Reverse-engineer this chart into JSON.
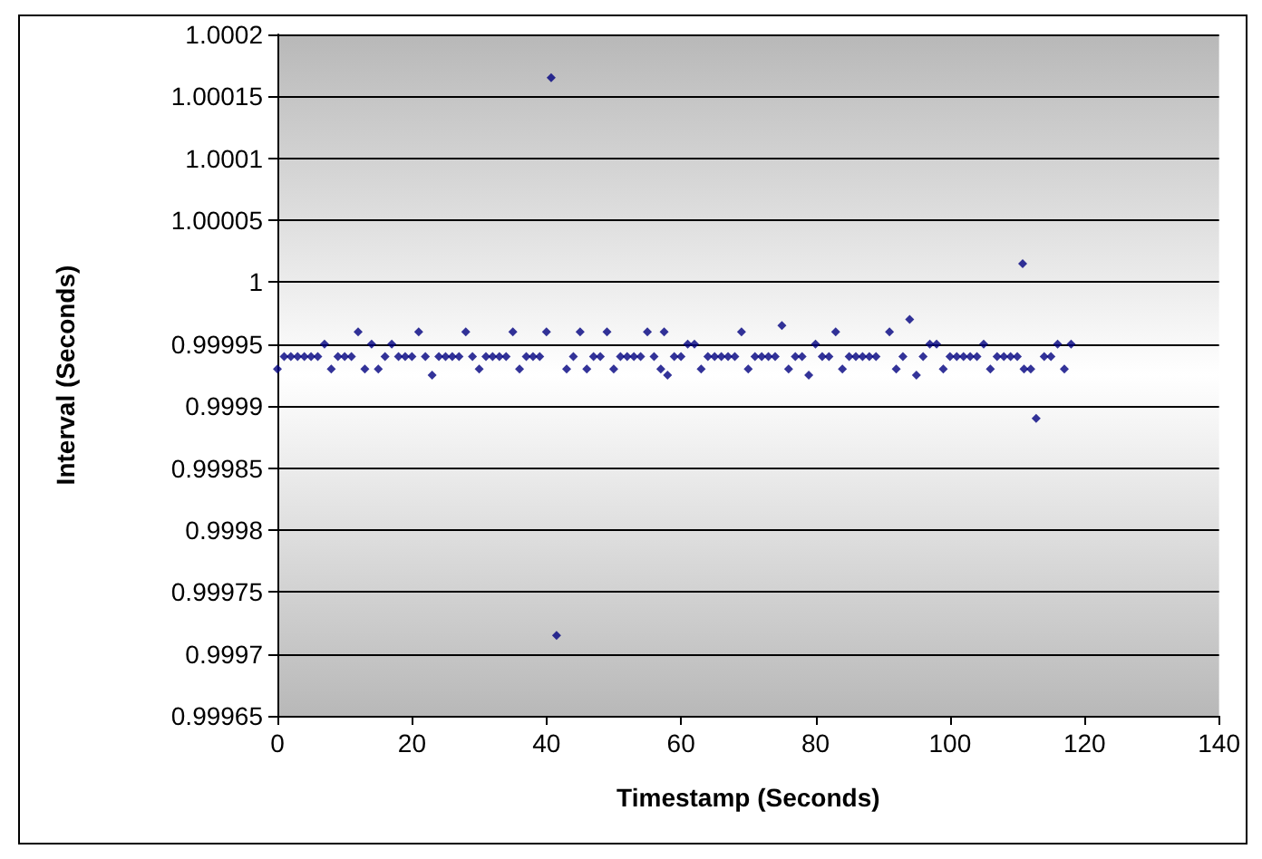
{
  "chart_data": {
    "type": "scatter",
    "xlabel": "Timestamp (Seconds)",
    "ylabel": "Interval (Seconds)",
    "xlim": [
      0,
      140
    ],
    "xticks": [
      0,
      20,
      40,
      60,
      80,
      100,
      120,
      140
    ],
    "ylim": [
      0.99965,
      1.0002
    ],
    "yticks": [
      0.99965,
      0.9997,
      0.99975,
      0.9998,
      0.99985,
      0.9999,
      0.99995,
      1,
      1.00005,
      1.0001,
      1.00015,
      1.0002
    ],
    "grid": "y",
    "marker": "diamond",
    "series": [
      {
        "color": "#000080",
        "x": [
          0,
          1,
          2,
          3,
          4,
          5,
          6,
          7,
          8,
          9,
          10,
          11,
          12,
          13,
          14,
          15,
          16,
          17,
          18,
          19,
          20,
          21,
          22,
          23,
          24,
          25,
          26,
          27,
          28,
          29,
          30,
          31,
          32,
          33,
          34,
          35,
          36,
          37,
          38,
          39,
          40,
          40.7,
          41.5,
          43,
          44,
          45,
          46,
          47,
          48,
          49,
          50,
          51,
          52,
          53,
          54,
          55,
          56,
          57,
          57.5,
          58,
          59,
          60,
          61,
          62,
          63,
          64,
          65,
          66,
          67,
          68,
          69,
          70,
          71,
          72,
          73,
          74,
          75,
          76,
          77,
          78,
          79,
          80,
          81,
          82,
          83,
          84,
          85,
          86,
          87,
          88,
          89,
          91,
          92,
          93,
          94,
          95,
          96,
          97,
          98,
          99,
          100,
          101,
          102,
          103,
          104,
          105,
          106,
          107,
          108,
          109,
          110,
          110.8,
          111,
          112,
          112.8,
          114,
          115,
          116,
          117,
          118
        ],
        "values": [
          0.99993,
          0.99994,
          0.99994,
          0.99994,
          0.99994,
          0.99994,
          0.99994,
          0.99995,
          0.99993,
          0.99994,
          0.99994,
          0.99994,
          0.99996,
          0.99993,
          0.99995,
          0.99993,
          0.99994,
          0.99995,
          0.99994,
          0.99994,
          0.99994,
          0.99996,
          0.99994,
          0.999925,
          0.99994,
          0.99994,
          0.99994,
          0.99994,
          0.99996,
          0.99994,
          0.99993,
          0.99994,
          0.99994,
          0.99994,
          0.99994,
          0.99996,
          0.99993,
          0.99994,
          0.99994,
          0.99994,
          0.99996,
          1.000165,
          0.999715,
          0.99993,
          0.99994,
          0.99996,
          0.99993,
          0.99994,
          0.99994,
          0.99996,
          0.99993,
          0.99994,
          0.99994,
          0.99994,
          0.99994,
          0.99996,
          0.99994,
          0.99993,
          0.99996,
          0.999925,
          0.99994,
          0.99994,
          0.99995,
          0.99995,
          0.99993,
          0.99994,
          0.99994,
          0.99994,
          0.99994,
          0.99994,
          0.99996,
          0.99993,
          0.99994,
          0.99994,
          0.99994,
          0.99994,
          0.999965,
          0.99993,
          0.99994,
          0.99994,
          0.999925,
          0.99995,
          0.99994,
          0.99994,
          0.99996,
          0.99993,
          0.99994,
          0.99994,
          0.99994,
          0.99994,
          0.99994,
          0.99996,
          0.99993,
          0.99994,
          0.99997,
          0.999925,
          0.99994,
          0.99995,
          0.99995,
          0.99993,
          0.99994,
          0.99994,
          0.99994,
          0.99994,
          0.99994,
          0.99995,
          0.99993,
          0.99994,
          0.99994,
          0.99994,
          0.99994,
          1.000015,
          0.99993,
          0.99993,
          0.99989,
          0.99994,
          0.99994,
          0.99995,
          0.99993,
          0.99995
        ]
      }
    ]
  }
}
